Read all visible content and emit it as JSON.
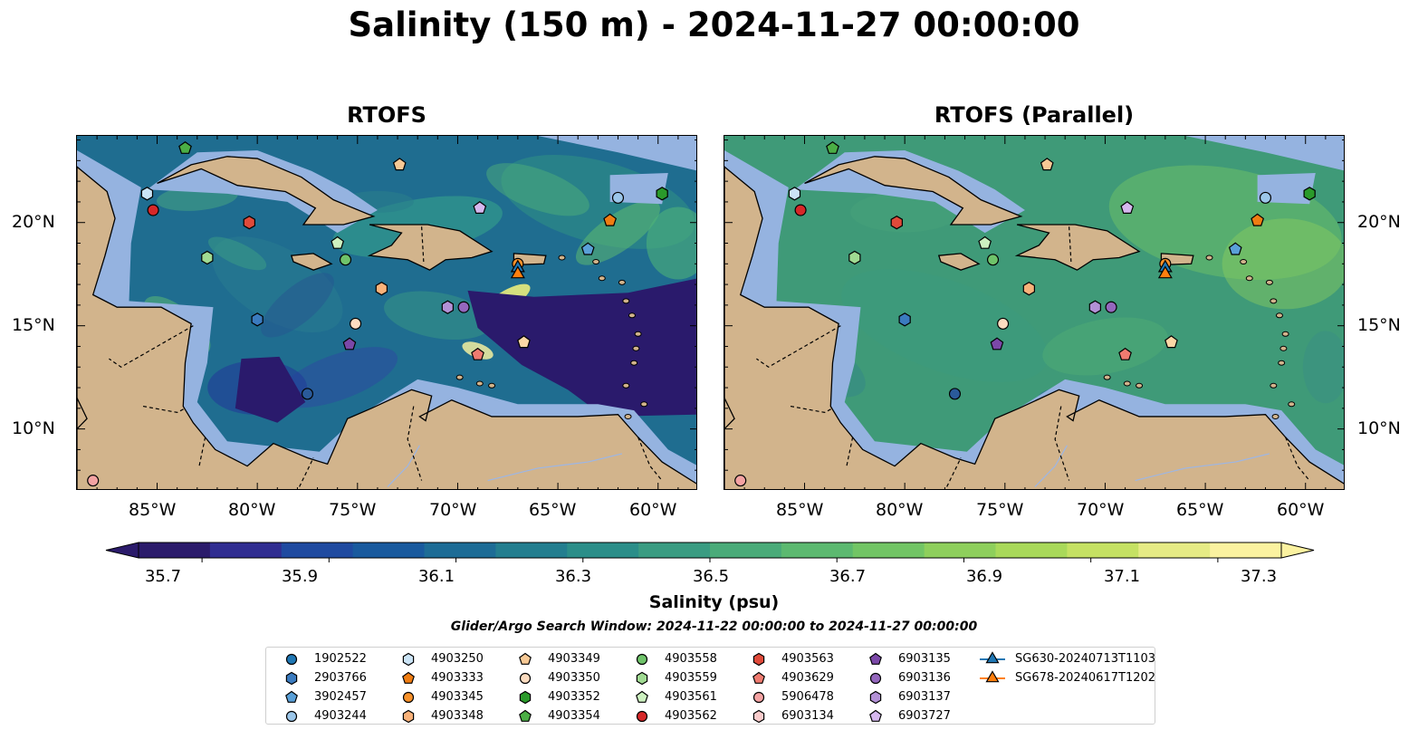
{
  "figure": {
    "suptitle": "Salinity (150 m) - 2024-11-27 00:00:00",
    "panels": [
      "RTOFS",
      "RTOFS (Parallel)"
    ],
    "lat_ticks": [
      "20°N",
      "15°N",
      "10°N"
    ],
    "lon_ticks": [
      "85°W",
      "80°W",
      "75°W",
      "70°W",
      "65°W",
      "60°W"
    ],
    "extent": {
      "lon_min": -89,
      "lon_max": -58,
      "lat_min": 7,
      "lat_max": 24.2
    }
  },
  "colorbar": {
    "label": "Salinity (psu)",
    "ticks": [
      "35.7",
      "35.9",
      "36.1",
      "36.3",
      "36.5",
      "36.7",
      "36.9",
      "37.1",
      "37.3"
    ],
    "range": [
      35.6,
      37.4
    ],
    "colors": [
      "#2b1b6b",
      "#302d91",
      "#1f4aa0",
      "#195a9e",
      "#1d6c96",
      "#237e8f",
      "#2b8e89",
      "#3a9c82",
      "#4aab79",
      "#5cb970",
      "#72c565",
      "#8ecf5c",
      "#a9d95a",
      "#c5e163",
      "#e6eb85",
      "#fbf2a0"
    ]
  },
  "search_window": "Glider/Argo Search Window: 2024-11-22 00:00:00 to 2024-11-27 00:00:00",
  "colors": {
    "land": "#d2b48c",
    "shelf": "#95b3e0",
    "deep": "#2a1a6c",
    "rtofs_sea": "#1f6d90",
    "parallel_sea": "#3f9a78"
  },
  "legend": [
    {
      "label": "1902522",
      "marker": "circle",
      "color": "#1f77b4",
      "lon": null,
      "lat": null
    },
    {
      "label": "2903766",
      "marker": "hexagon",
      "color": "#3b7bbf",
      "lon": -80,
      "lat": 15.3
    },
    {
      "label": "3902457",
      "marker": "pentagon",
      "color": "#5aa0d8",
      "lon": -63.5,
      "lat": 18.7
    },
    {
      "label": "4903244",
      "marker": "circle",
      "color": "#9cc7ea",
      "lon": -62,
      "lat": 21.2
    },
    {
      "label": "4903250",
      "marker": "hexagon",
      "color": "#cbe4f6",
      "lon": -85.5,
      "lat": 21.4
    },
    {
      "label": "4903333",
      "marker": "pentagon",
      "color": "#f07d12",
      "lon": -62.4,
      "lat": 20.1
    },
    {
      "label": "4903345",
      "marker": "circle",
      "color": "#f7912a",
      "lon": -67,
      "lat": 18.0
    },
    {
      "label": "4903348",
      "marker": "hexagon",
      "color": "#f9b27a",
      "lon": -73.8,
      "lat": 16.8
    },
    {
      "label": "4903349",
      "marker": "pentagon",
      "color": "#f7c995",
      "lon": -72.9,
      "lat": 22.8
    },
    {
      "label": "4903350",
      "marker": "circle",
      "color": "#fcdcc0",
      "lon": -75.1,
      "lat": 15.1
    },
    {
      "label": "4903352",
      "marker": "hexagon",
      "color": "#2a9a2a",
      "lon": -59.8,
      "lat": 21.4
    },
    {
      "label": "4903354",
      "marker": "pentagon",
      "color": "#4bae45",
      "lon": -83.6,
      "lat": 23.6
    },
    {
      "label": "4903558",
      "marker": "circle",
      "color": "#6fc36a",
      "lon": -75.6,
      "lat": 18.2
    },
    {
      "label": "4903559",
      "marker": "hexagon",
      "color": "#a0da92",
      "lon": -82.5,
      "lat": 18.3
    },
    {
      "label": "4903561",
      "marker": "pentagon",
      "color": "#cdf1c0",
      "lon": -76,
      "lat": 19.0
    },
    {
      "label": "4903562",
      "marker": "circle",
      "color": "#d62728",
      "lon": -85.2,
      "lat": 20.6
    },
    {
      "label": "4903563",
      "marker": "hexagon",
      "color": "#e04a3a",
      "lon": -80.4,
      "lat": 20.0
    },
    {
      "label": "4903629",
      "marker": "pentagon",
      "color": "#ef7b70",
      "lon": -69,
      "lat": 13.6
    },
    {
      "label": "5906478",
      "marker": "circle",
      "color": "#f4a3a3",
      "lon": -88.2,
      "lat": 7.5
    },
    {
      "label": "6903134",
      "marker": "hexagon",
      "color": "#f9cbcb",
      "lon": null,
      "lat": null
    },
    {
      "label": "6903135",
      "marker": "pentagon",
      "color": "#7b48a8",
      "lon": -75.4,
      "lat": 14.1
    },
    {
      "label": "6903136",
      "marker": "circle",
      "color": "#9467bd",
      "lon": -69.7,
      "lat": 15.9
    },
    {
      "label": "6903137",
      "marker": "hexagon",
      "color": "#b391d6",
      "lon": -70.5,
      "lat": 15.9
    },
    {
      "label": "6903727",
      "marker": "pentagon",
      "color": "#d6b8ef",
      "lon": -68.9,
      "lat": 20.7
    },
    {
      "label": "SG630-20240713T1103",
      "marker": "triangle",
      "color": "#1f77b4",
      "lon": -67,
      "lat": 17.8
    },
    {
      "label": "SG678-20240617T1202",
      "marker": "triangle",
      "color": "#ff7f0e",
      "lon": -67,
      "lat": 17.5
    }
  ],
  "extra_markers": [
    {
      "marker": "circle",
      "color": "#2a5a9a",
      "lon": -77.5,
      "lat": 11.7
    },
    {
      "marker": "pentagon",
      "color": "#fbd7a6",
      "lon": -66.7,
      "lat": 14.2
    }
  ]
}
